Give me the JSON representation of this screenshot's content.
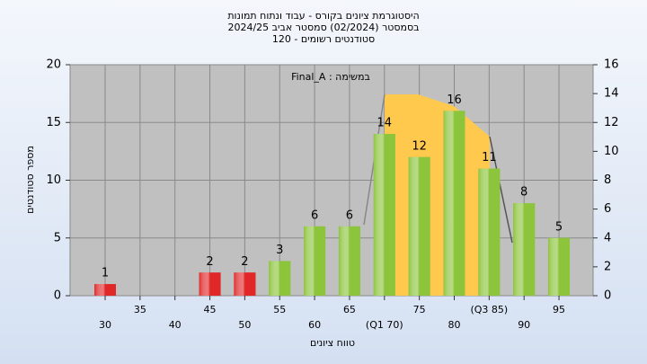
{
  "chart_data": {
    "type": "bar",
    "title": "היסטוגרמת ציונים בקורס - עבוד ונתוח תמונות",
    "subtitle": "בסמסטר  (02/2024)  סמסטר אביב 2024/25",
    "subtitle2": "סטודנטים רשומים - 120",
    "annotation": "במשימה : Final_A",
    "x_label": "טווח ציונים",
    "y_label": "מספר סטודנטים",
    "categories": [
      "30",
      "35",
      "40",
      "45",
      "50",
      "55",
      "60",
      "65",
      "(Q1 70)",
      "75",
      "80",
      "(Q3 85)",
      "90",
      "95"
    ],
    "values": [
      1,
      null,
      null,
      2,
      2,
      3,
      6,
      6,
      14,
      12,
      16,
      11,
      8,
      5
    ],
    "colors": [
      "#e02828",
      "#e02828",
      "#e02828",
      "#e02828",
      "#e02828",
      "#8cc43c",
      "#8cc43c",
      "#8cc43c",
      "#8cc43c",
      "#8cc43c",
      "#8cc43c",
      "#8cc43c",
      "#8cc43c",
      "#8cc43c"
    ],
    "ylim": [
      0,
      20
    ],
    "yticks": [
      0,
      5,
      10,
      15,
      20
    ],
    "y2lim": [
      0,
      16
    ],
    "y2ticks": [
      0,
      2,
      4,
      6,
      8,
      10,
      12,
      14,
      16
    ],
    "grid": true
  }
}
